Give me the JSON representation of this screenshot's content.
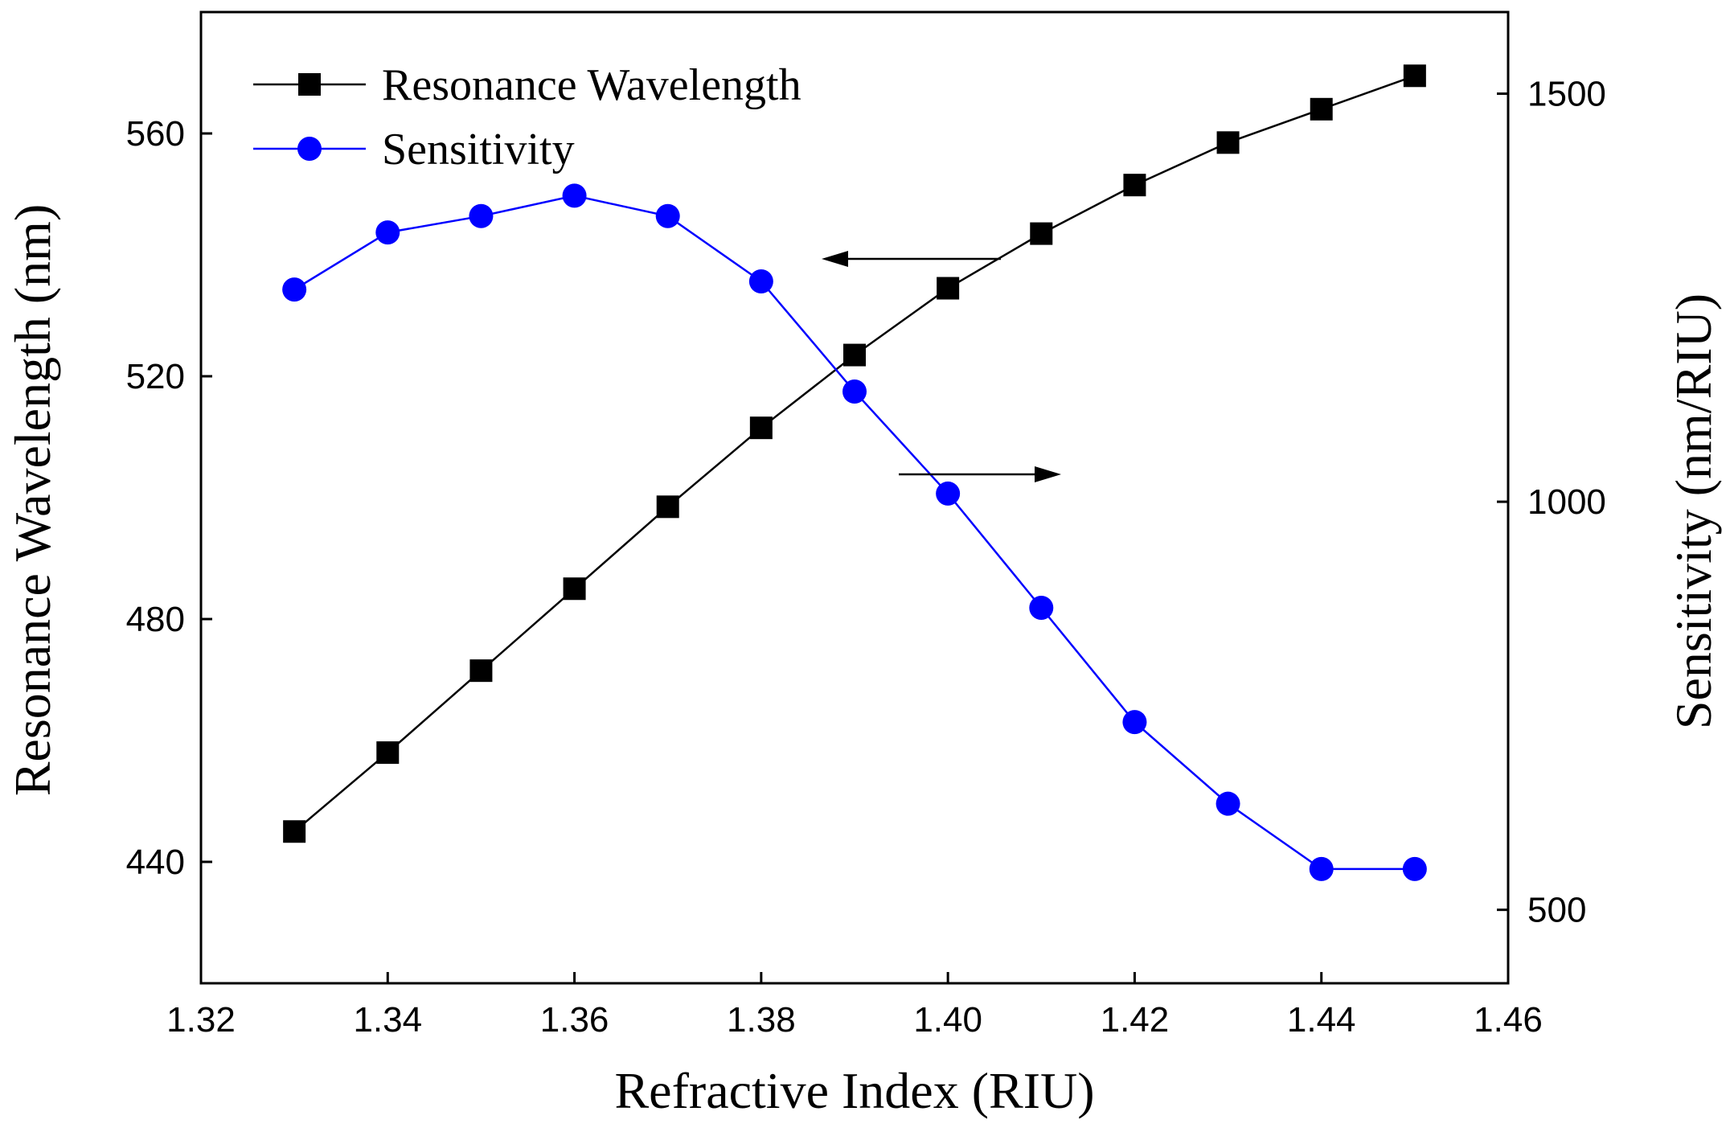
{
  "chart_data": {
    "type": "line",
    "title": "",
    "xlabel": "Refractive Index (RIU)",
    "ylabel_left": "Resonance Wavelength (nm)",
    "ylabel_right": "Sensitivity (nm/RIU)",
    "xlim": [
      1.32,
      1.46
    ],
    "ylim_left": [
      420,
      580
    ],
    "ylim_right": [
      410,
      1600
    ],
    "x_ticks": [
      "1.32",
      "1.34",
      "1.36",
      "1.38",
      "1.40",
      "1.42",
      "1.44",
      "1.46"
    ],
    "y_left_ticks": [
      "440",
      "480",
      "520",
      "560"
    ],
    "y_right_ticks": [
      "500",
      "1000",
      "1500"
    ],
    "grid": false,
    "legend_position": "top-left",
    "series": [
      {
        "name": "Resonance Wavelength",
        "axis": "left",
        "color": "#000000",
        "marker": "square",
        "x": [
          1.33,
          1.34,
          1.35,
          1.36,
          1.37,
          1.38,
          1.39,
          1.4,
          1.41,
          1.42,
          1.43,
          1.44,
          1.45
        ],
        "values": [
          445,
          458,
          471.5,
          485,
          498.5,
          511.5,
          523.5,
          534.5,
          543.5,
          551.5,
          558.5,
          564,
          569.5
        ]
      },
      {
        "name": "Sensitivity",
        "axis": "right",
        "color": "#0000ff",
        "marker": "circle",
        "x": [
          1.33,
          1.34,
          1.35,
          1.36,
          1.37,
          1.38,
          1.39,
          1.4,
          1.41,
          1.42,
          1.43,
          1.44,
          1.45
        ],
        "values": [
          1260,
          1330,
          1350,
          1375,
          1350,
          1270,
          1135,
          1010,
          870,
          730,
          630,
          550,
          550
        ]
      }
    ]
  }
}
